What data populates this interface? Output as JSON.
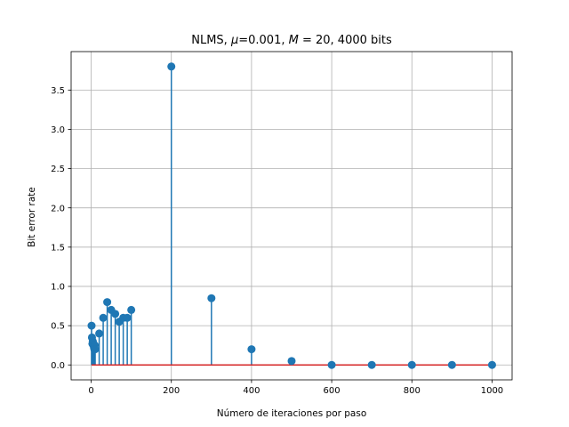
{
  "chart_data": {
    "type": "stem",
    "title": "NLMS, μ=0.001, M = 20, 4000 bits",
    "title_parts": {
      "prefix": "NLMS, ",
      "mu_symbol": "μ",
      "mu_value": "=0.001, ",
      "m_symbol": "M",
      "m_value": " = 20, 4000 bits"
    },
    "xlabel": "Número de iteraciones por paso",
    "ylabel": "Bit error rate",
    "xlim": [
      -50,
      1050
    ],
    "ylim": [
      -0.19,
      3.99
    ],
    "xticks": [
      0,
      200,
      400,
      600,
      800,
      1000
    ],
    "xtick_labels": [
      "0",
      "200",
      "400",
      "600",
      "800",
      "1000"
    ],
    "yticks": [
      0.0,
      0.5,
      1.0,
      1.5,
      2.0,
      2.5,
      3.0,
      3.5
    ],
    "ytick_labels": [
      "0.0",
      "0.5",
      "1.0",
      "1.5",
      "2.0",
      "2.5",
      "3.0",
      "3.5"
    ],
    "grid": true,
    "baseline": 0,
    "colors": {
      "stem": "#1f77b4",
      "marker": "#1f77b4",
      "baseline": "#d62728",
      "grid": "#b0b0b0"
    },
    "x": [
      1,
      2,
      3,
      4,
      5,
      6,
      7,
      8,
      9,
      10,
      20,
      30,
      40,
      50,
      60,
      70,
      80,
      90,
      100,
      200,
      300,
      400,
      500,
      600,
      700,
      800,
      900,
      1000
    ],
    "y": [
      0.5,
      0.35,
      0.27,
      0.3,
      0.28,
      0.25,
      0.22,
      0.2,
      0.25,
      0.2,
      0.4,
      0.6,
      0.8,
      0.7,
      0.65,
      0.55,
      0.6,
      0.6,
      0.7,
      3.8,
      0.85,
      0.2,
      0.05,
      0.0,
      0.0,
      0.0,
      0.0,
      0.0
    ]
  }
}
